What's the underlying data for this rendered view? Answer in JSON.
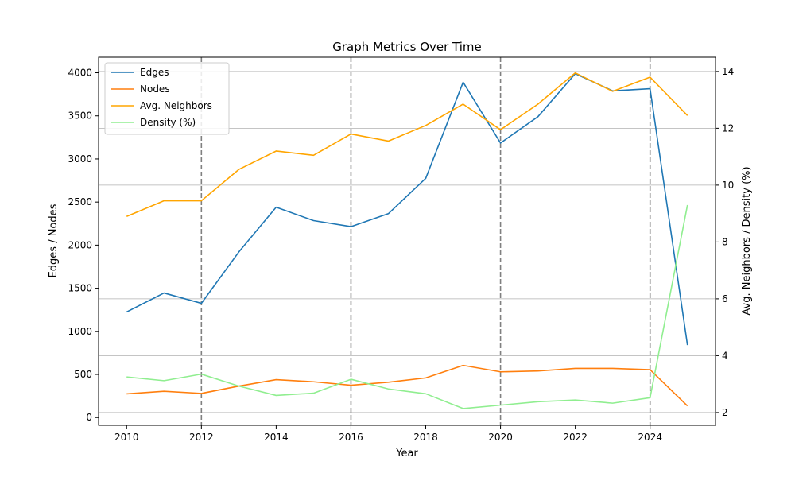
{
  "chart_data": {
    "type": "line",
    "title": "Graph Metrics Over Time",
    "xlabel": "Year",
    "ylabel_left": "Edges / Nodes",
    "ylabel_right": "Avg. Neighbors / Density (%)",
    "x": [
      2010,
      2011,
      2012,
      2013,
      2014,
      2015,
      2016,
      2017,
      2018,
      2019,
      2020,
      2021,
      2022,
      2023,
      2024,
      2025
    ],
    "xlim": [
      2009.25,
      2025.75
    ],
    "ylim_left": [
      -90,
      4180
    ],
    "ylim_right": [
      1.55,
      14.5
    ],
    "x_ticks": [
      2010,
      2012,
      2014,
      2016,
      2018,
      2020,
      2022,
      2024
    ],
    "y_ticks_left": [
      0,
      500,
      1000,
      1500,
      2000,
      2500,
      3000,
      3500,
      4000
    ],
    "y_ticks_right": [
      2,
      4,
      6,
      8,
      10,
      12,
      14
    ],
    "vertical_lines": [
      2012,
      2016,
      2020,
      2024
    ],
    "grid": "horizontal lines at right-axis ticks",
    "legend_position": "upper-left",
    "series": [
      {
        "name": "Edges",
        "axis": "left",
        "color": "#1f77b4",
        "values": [
          1225,
          1445,
          1325,
          1920,
          2440,
          2285,
          2215,
          2365,
          2775,
          3890,
          3185,
          3490,
          3990,
          3790,
          3815,
          840
        ]
      },
      {
        "name": "Nodes",
        "axis": "left",
        "color": "#ff7f0e",
        "values": [
          275,
          305,
          280,
          365,
          440,
          415,
          375,
          410,
          460,
          605,
          530,
          540,
          570,
          570,
          555,
          135
        ]
      },
      {
        "name": "Avg. Neighbors",
        "axis": "right",
        "color": "#ffa500",
        "values": [
          8.9,
          9.45,
          9.45,
          10.55,
          11.2,
          11.05,
          11.8,
          11.55,
          12.1,
          12.85,
          11.95,
          12.85,
          13.95,
          13.3,
          13.8,
          12.45
        ]
      },
      {
        "name": "Density (%)",
        "axis": "right",
        "color": "#90ee90",
        "values": [
          3.25,
          3.12,
          3.35,
          2.93,
          2.6,
          2.68,
          3.17,
          2.83,
          2.66,
          2.14,
          2.26,
          2.38,
          2.44,
          2.33,
          2.52,
          9.3
        ]
      }
    ]
  }
}
